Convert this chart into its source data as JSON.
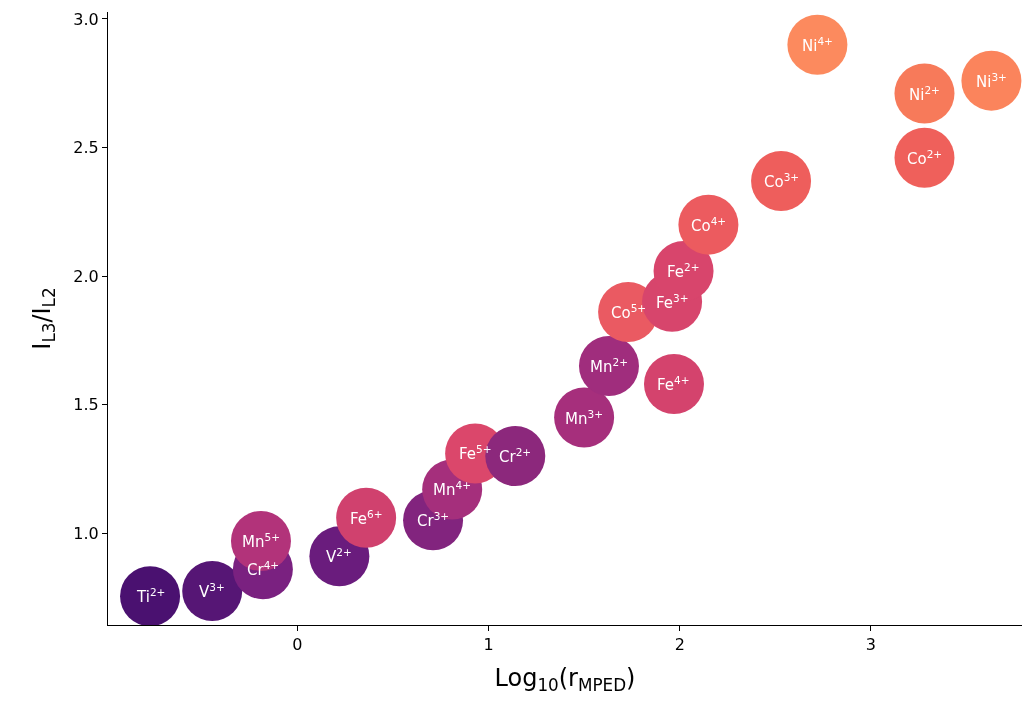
{
  "chart_data": {
    "type": "scatter",
    "xlabel": "Log$_{10}$(r$_{MPED}$)",
    "ylabel": "I$_{L3}$/I$_{L2}$",
    "xlim": [
      -0.99,
      3.79
    ],
    "xticks": [
      0,
      1,
      2,
      3
    ],
    "ylim": [
      0.643,
      3.027
    ],
    "yticks": [
      {
        "value": 1.0,
        "label": "1.0"
      },
      {
        "value": 1.5,
        "label": "1.5"
      },
      {
        "value": 2.0,
        "label": "2.0"
      },
      {
        "value": 2.5,
        "label": "2.5"
      },
      {
        "value": 3.0,
        "label": "3.0"
      }
    ],
    "legend": false,
    "marker": "circle",
    "x": [
      -0.77,
      -0.445,
      -0.18,
      -0.19,
      0.22,
      0.36,
      0.71,
      0.81,
      0.93,
      1.14,
      1.5,
      1.63,
      1.73,
      1.97,
      1.96,
      2.02,
      2.15,
      2.53,
      3.28,
      3.28,
      2.72,
      3.63
    ],
    "values": [
      0.755,
      0.775,
      0.86,
      0.97,
      0.91,
      1.06,
      1.05,
      1.17,
      1.31,
      1.3,
      1.45,
      1.65,
      1.86,
      1.58,
      1.9,
      2.02,
      2.2,
      2.37,
      2.46,
      2.71,
      2.9,
      2.76
    ],
    "colors": [
      "#4a1170",
      "#561675",
      "#7a2180",
      "#b2337a",
      "#6a1c7d",
      "#d0416e",
      "#82247e",
      "#a52f7c",
      "#db476b",
      "#8c287c",
      "#a62f7c",
      "#a02d7d",
      "#ea5a62",
      "#d4436d",
      "#d7456c",
      "#d8456c",
      "#ec5b5f",
      "#ee5e5c",
      "#ef605b",
      "#f77a5a",
      "#fc8a5e",
      "#fb845c"
    ],
    "annotations": [
      {
        "text": "Ti$^{2+}$",
        "x": -0.77,
        "y": 0.755
      },
      {
        "text": "V$^{3+}$",
        "x": -0.445,
        "y": 0.775
      },
      {
        "text": "Cr$^{4+}$",
        "x": -0.18,
        "y": 0.86
      },
      {
        "text": "Mn$^{5+}$",
        "x": -0.19,
        "y": 0.97
      },
      {
        "text": "V$^{2+}$",
        "x": 0.22,
        "y": 0.91
      },
      {
        "text": "Fe$^{6+}$",
        "x": 0.36,
        "y": 1.06
      },
      {
        "text": "Cr$^{3+}$",
        "x": 0.71,
        "y": 1.05
      },
      {
        "text": "Mn$^{4+}$",
        "x": 0.81,
        "y": 1.17
      },
      {
        "text": "Fe$^{5+}$",
        "x": 0.93,
        "y": 1.31
      },
      {
        "text": "Cr$^{2+}$",
        "x": 1.14,
        "y": 1.3
      },
      {
        "text": "Mn$^{3+}$",
        "x": 1.5,
        "y": 1.45
      },
      {
        "text": "Mn$^{2+}$",
        "x": 1.63,
        "y": 1.65
      },
      {
        "text": "Co$^{5+}$",
        "x": 1.73,
        "y": 1.86
      },
      {
        "text": "Fe$^{4+}$",
        "x": 1.97,
        "y": 1.58
      },
      {
        "text": "Fe$^{3+}$",
        "x": 1.96,
        "y": 1.9
      },
      {
        "text": "Fe$^{2+}$",
        "x": 2.02,
        "y": 2.02
      },
      {
        "text": "Co$^{4+}$",
        "x": 2.15,
        "y": 2.2
      },
      {
        "text": "Co$^{3+}$",
        "x": 2.53,
        "y": 2.37
      },
      {
        "text": "Co$^{2+}$",
        "x": 3.28,
        "y": 2.46
      },
      {
        "text": "Ni$^{2+}$",
        "x": 3.28,
        "y": 2.71
      },
      {
        "text": "Ni$^{4+}$",
        "x": 2.72,
        "y": 2.9
      },
      {
        "text": "Ni$^{3+}$",
        "x": 3.63,
        "y": 2.76
      }
    ]
  }
}
